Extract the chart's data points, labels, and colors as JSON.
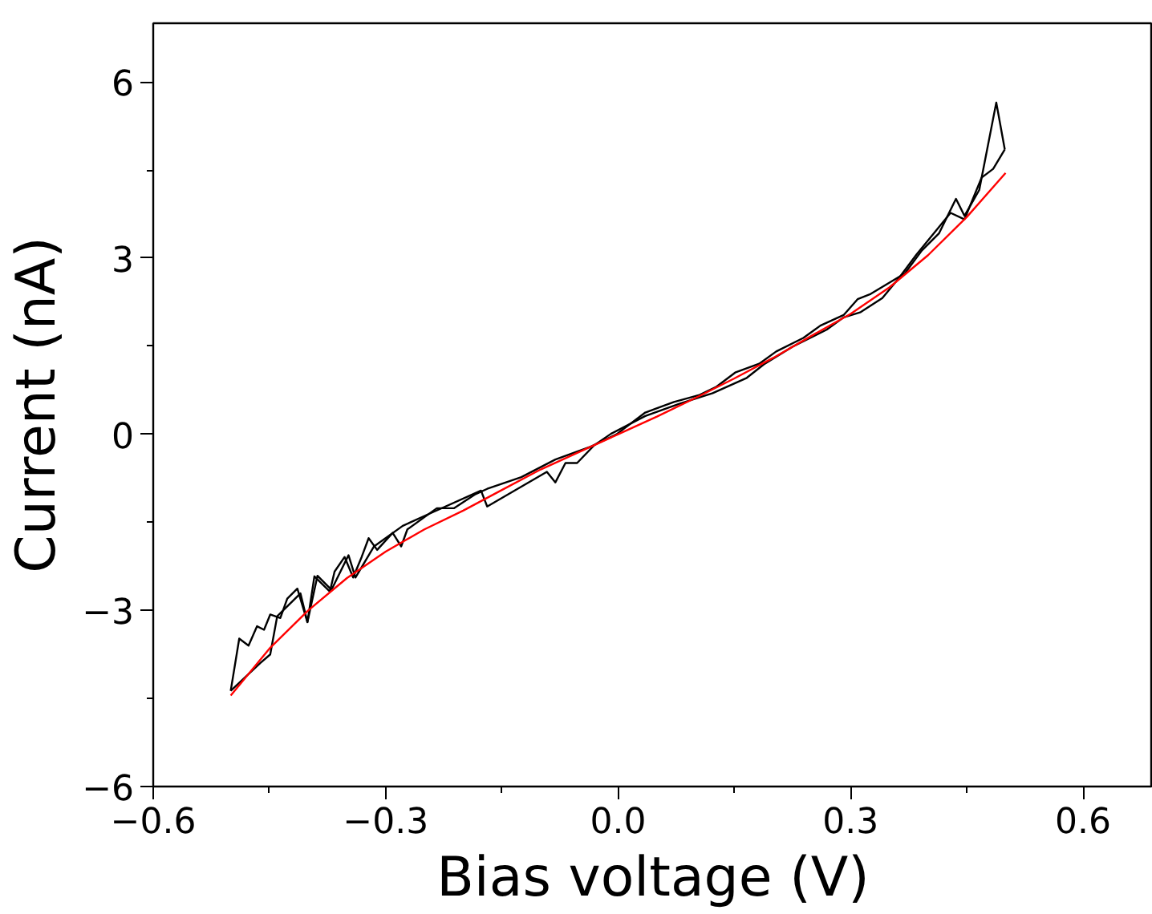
{
  "chart_data": {
    "type": "line",
    "xlabel": "Bias voltage (V)",
    "ylabel": "Current (nA)",
    "xlim": [
      -0.6,
      0.69
    ],
    "ylim": [
      -6,
      7
    ],
    "xticks": [
      {
        "value": -0.6,
        "label": "−0.6"
      },
      {
        "value": -0.3,
        "label": "−0.3"
      },
      {
        "value": 0,
        "label": "0.0"
      },
      {
        "value": 0.3,
        "label": "0.3"
      },
      {
        "value": 0.6,
        "label": "0.6"
      }
    ],
    "yticks": [
      {
        "value": -6,
        "label": "−6"
      },
      {
        "value": -3,
        "label": "−3"
      },
      {
        "value": 0,
        "label": "0"
      },
      {
        "value": 3,
        "label": "3"
      },
      {
        "value": 6,
        "label": "6"
      }
    ],
    "grid": false,
    "marker": "none",
    "line_style": "solid",
    "series": [
      {
        "color": "#000000",
        "x": [
          -0.5,
          -0.489,
          -0.477,
          -0.466,
          -0.457,
          -0.449,
          -0.436,
          -0.427,
          -0.414,
          -0.401,
          -0.392,
          -0.372,
          -0.366,
          -0.353,
          -0.342,
          -0.331,
          -0.322,
          -0.311,
          -0.291,
          -0.28,
          -0.272,
          -0.234,
          -0.212,
          -0.184,
          -0.169,
          -0.125,
          -0.081,
          -0.037,
          -0.002,
          0.035,
          0.072,
          0.105,
          0.127,
          0.151,
          0.182,
          0.204,
          0.239,
          0.261,
          0.291,
          0.309,
          0.326,
          0.37,
          0.392,
          0.414,
          0.436,
          0.447,
          0.466,
          0.488,
          0.499
        ],
        "values": [
          -4.37,
          -3.48,
          -3.6,
          -3.27,
          -3.33,
          -3.07,
          -3.13,
          -2.8,
          -2.63,
          -3.2,
          -2.42,
          -2.68,
          -2.34,
          -2.09,
          -2.44,
          -2.09,
          -1.77,
          -1.97,
          -1.68,
          -1.91,
          -1.62,
          -1.26,
          -1.26,
          -1.02,
          -0.93,
          -0.73,
          -0.43,
          -0.22,
          0.0,
          0.37,
          0.55,
          0.67,
          0.81,
          1.05,
          1.2,
          1.41,
          1.64,
          1.85,
          2.03,
          2.3,
          2.39,
          2.74,
          3.13,
          3.42,
          4.01,
          3.72,
          4.16,
          5.65,
          4.85
        ]
      },
      {
        "color": "#000000",
        "x": [
          -0.5,
          -0.462,
          -0.449,
          -0.44,
          -0.41,
          -0.401,
          -0.388,
          -0.37,
          -0.348,
          -0.339,
          -0.315,
          -0.278,
          -0.243,
          -0.177,
          -0.169,
          -0.092,
          -0.081,
          -0.068,
          -0.053,
          -0.031,
          -0.009,
          0.035,
          0.079,
          0.122,
          0.166,
          0.188,
          0.225,
          0.269,
          0.291,
          0.313,
          0.341,
          0.363,
          0.385,
          0.429,
          0.447,
          0.469,
          0.484,
          0.499
        ],
        "values": [
          -4.37,
          -3.9,
          -3.75,
          -3.1,
          -2.71,
          -3.2,
          -2.41,
          -2.65,
          -2.06,
          -2.44,
          -1.91,
          -1.56,
          -1.35,
          -0.96,
          -1.23,
          -0.64,
          -0.82,
          -0.49,
          -0.49,
          -0.19,
          0.01,
          0.31,
          0.52,
          0.7,
          0.96,
          1.19,
          1.49,
          1.78,
          1.99,
          2.08,
          2.32,
          2.67,
          3.06,
          3.77,
          3.66,
          4.37,
          4.52,
          4.85
        ]
      },
      {
        "color": "#ff0000",
        "x": [
          -0.5,
          -0.45,
          -0.4,
          -0.35,
          -0.3,
          -0.25,
          -0.2,
          -0.15,
          -0.1,
          -0.05,
          0,
          0.05,
          0.1,
          0.15,
          0.2,
          0.25,
          0.3,
          0.35,
          0.4,
          0.45,
          0.5
        ],
        "values": [
          -4.45,
          -3.65,
          -3.0,
          -2.45,
          -2.0,
          -1.62,
          -1.3,
          -0.95,
          -0.6,
          -0.3,
          0,
          0.3,
          0.62,
          0.95,
          1.3,
          1.68,
          2.05,
          2.5,
          3.05,
          3.7,
          4.45
        ]
      }
    ]
  }
}
